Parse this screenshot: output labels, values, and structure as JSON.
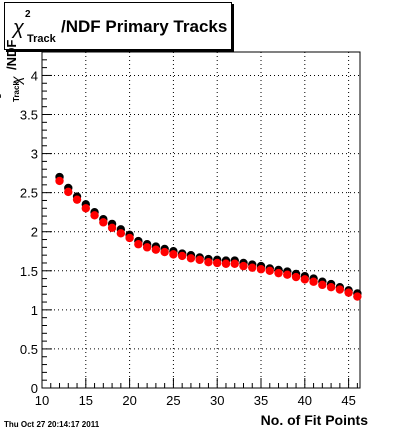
{
  "chart_data": {
    "type": "scatter",
    "title": {
      "symbol": "χ",
      "superscript": "2",
      "subscript": "Track",
      "text": "/NDF Primary Tracks"
    },
    "ylabel": {
      "symbol": "χ",
      "superscript": "2",
      "subscript": "Track",
      "text": "/NDF"
    },
    "xlabel": "No. of Fit Points",
    "xlim": [
      10,
      46.3
    ],
    "ylim": [
      0,
      4.3
    ],
    "x_ticks": [
      "10",
      "15",
      "20",
      "25",
      "30",
      "35",
      "40",
      "45"
    ],
    "y_ticks": [
      "0",
      "0.5",
      "1",
      "1.5",
      "2",
      "2.5",
      "3",
      "3.5",
      "4"
    ],
    "grid": true,
    "series": [
      {
        "color": "#000000",
        "x": [
          12,
          13,
          14,
          15,
          16,
          17,
          18,
          19,
          20,
          21,
          22,
          23,
          24,
          25,
          26,
          27,
          28,
          29,
          30,
          31,
          32,
          33,
          34,
          35,
          36,
          37,
          38,
          39,
          40,
          41,
          42,
          43,
          44,
          45,
          46
        ],
        "y": [
          2.7,
          2.56,
          2.45,
          2.35,
          2.25,
          2.16,
          2.1,
          2.03,
          1.96,
          1.88,
          1.84,
          1.81,
          1.78,
          1.75,
          1.72,
          1.7,
          1.67,
          1.65,
          1.64,
          1.63,
          1.63,
          1.6,
          1.58,
          1.56,
          1.53,
          1.51,
          1.49,
          1.46,
          1.43,
          1.4,
          1.36,
          1.33,
          1.29,
          1.25,
          1.21
        ]
      },
      {
        "color": "#ff0000",
        "x": [
          12,
          13,
          14,
          15,
          16,
          17,
          18,
          19,
          20,
          21,
          22,
          23,
          24,
          25,
          26,
          27,
          28,
          29,
          30,
          31,
          32,
          33,
          34,
          35,
          36,
          37,
          38,
          39,
          40,
          41,
          42,
          43,
          44,
          45,
          46
        ],
        "y": [
          2.65,
          2.51,
          2.41,
          2.3,
          2.21,
          2.12,
          2.05,
          1.98,
          1.92,
          1.84,
          1.8,
          1.77,
          1.74,
          1.71,
          1.69,
          1.66,
          1.64,
          1.61,
          1.6,
          1.59,
          1.59,
          1.56,
          1.54,
          1.52,
          1.5,
          1.47,
          1.45,
          1.42,
          1.39,
          1.36,
          1.32,
          1.29,
          1.26,
          1.22,
          1.17
        ]
      }
    ]
  },
  "footer": {
    "datestamp": "Thu Oct 27 20:14:17 2011"
  }
}
